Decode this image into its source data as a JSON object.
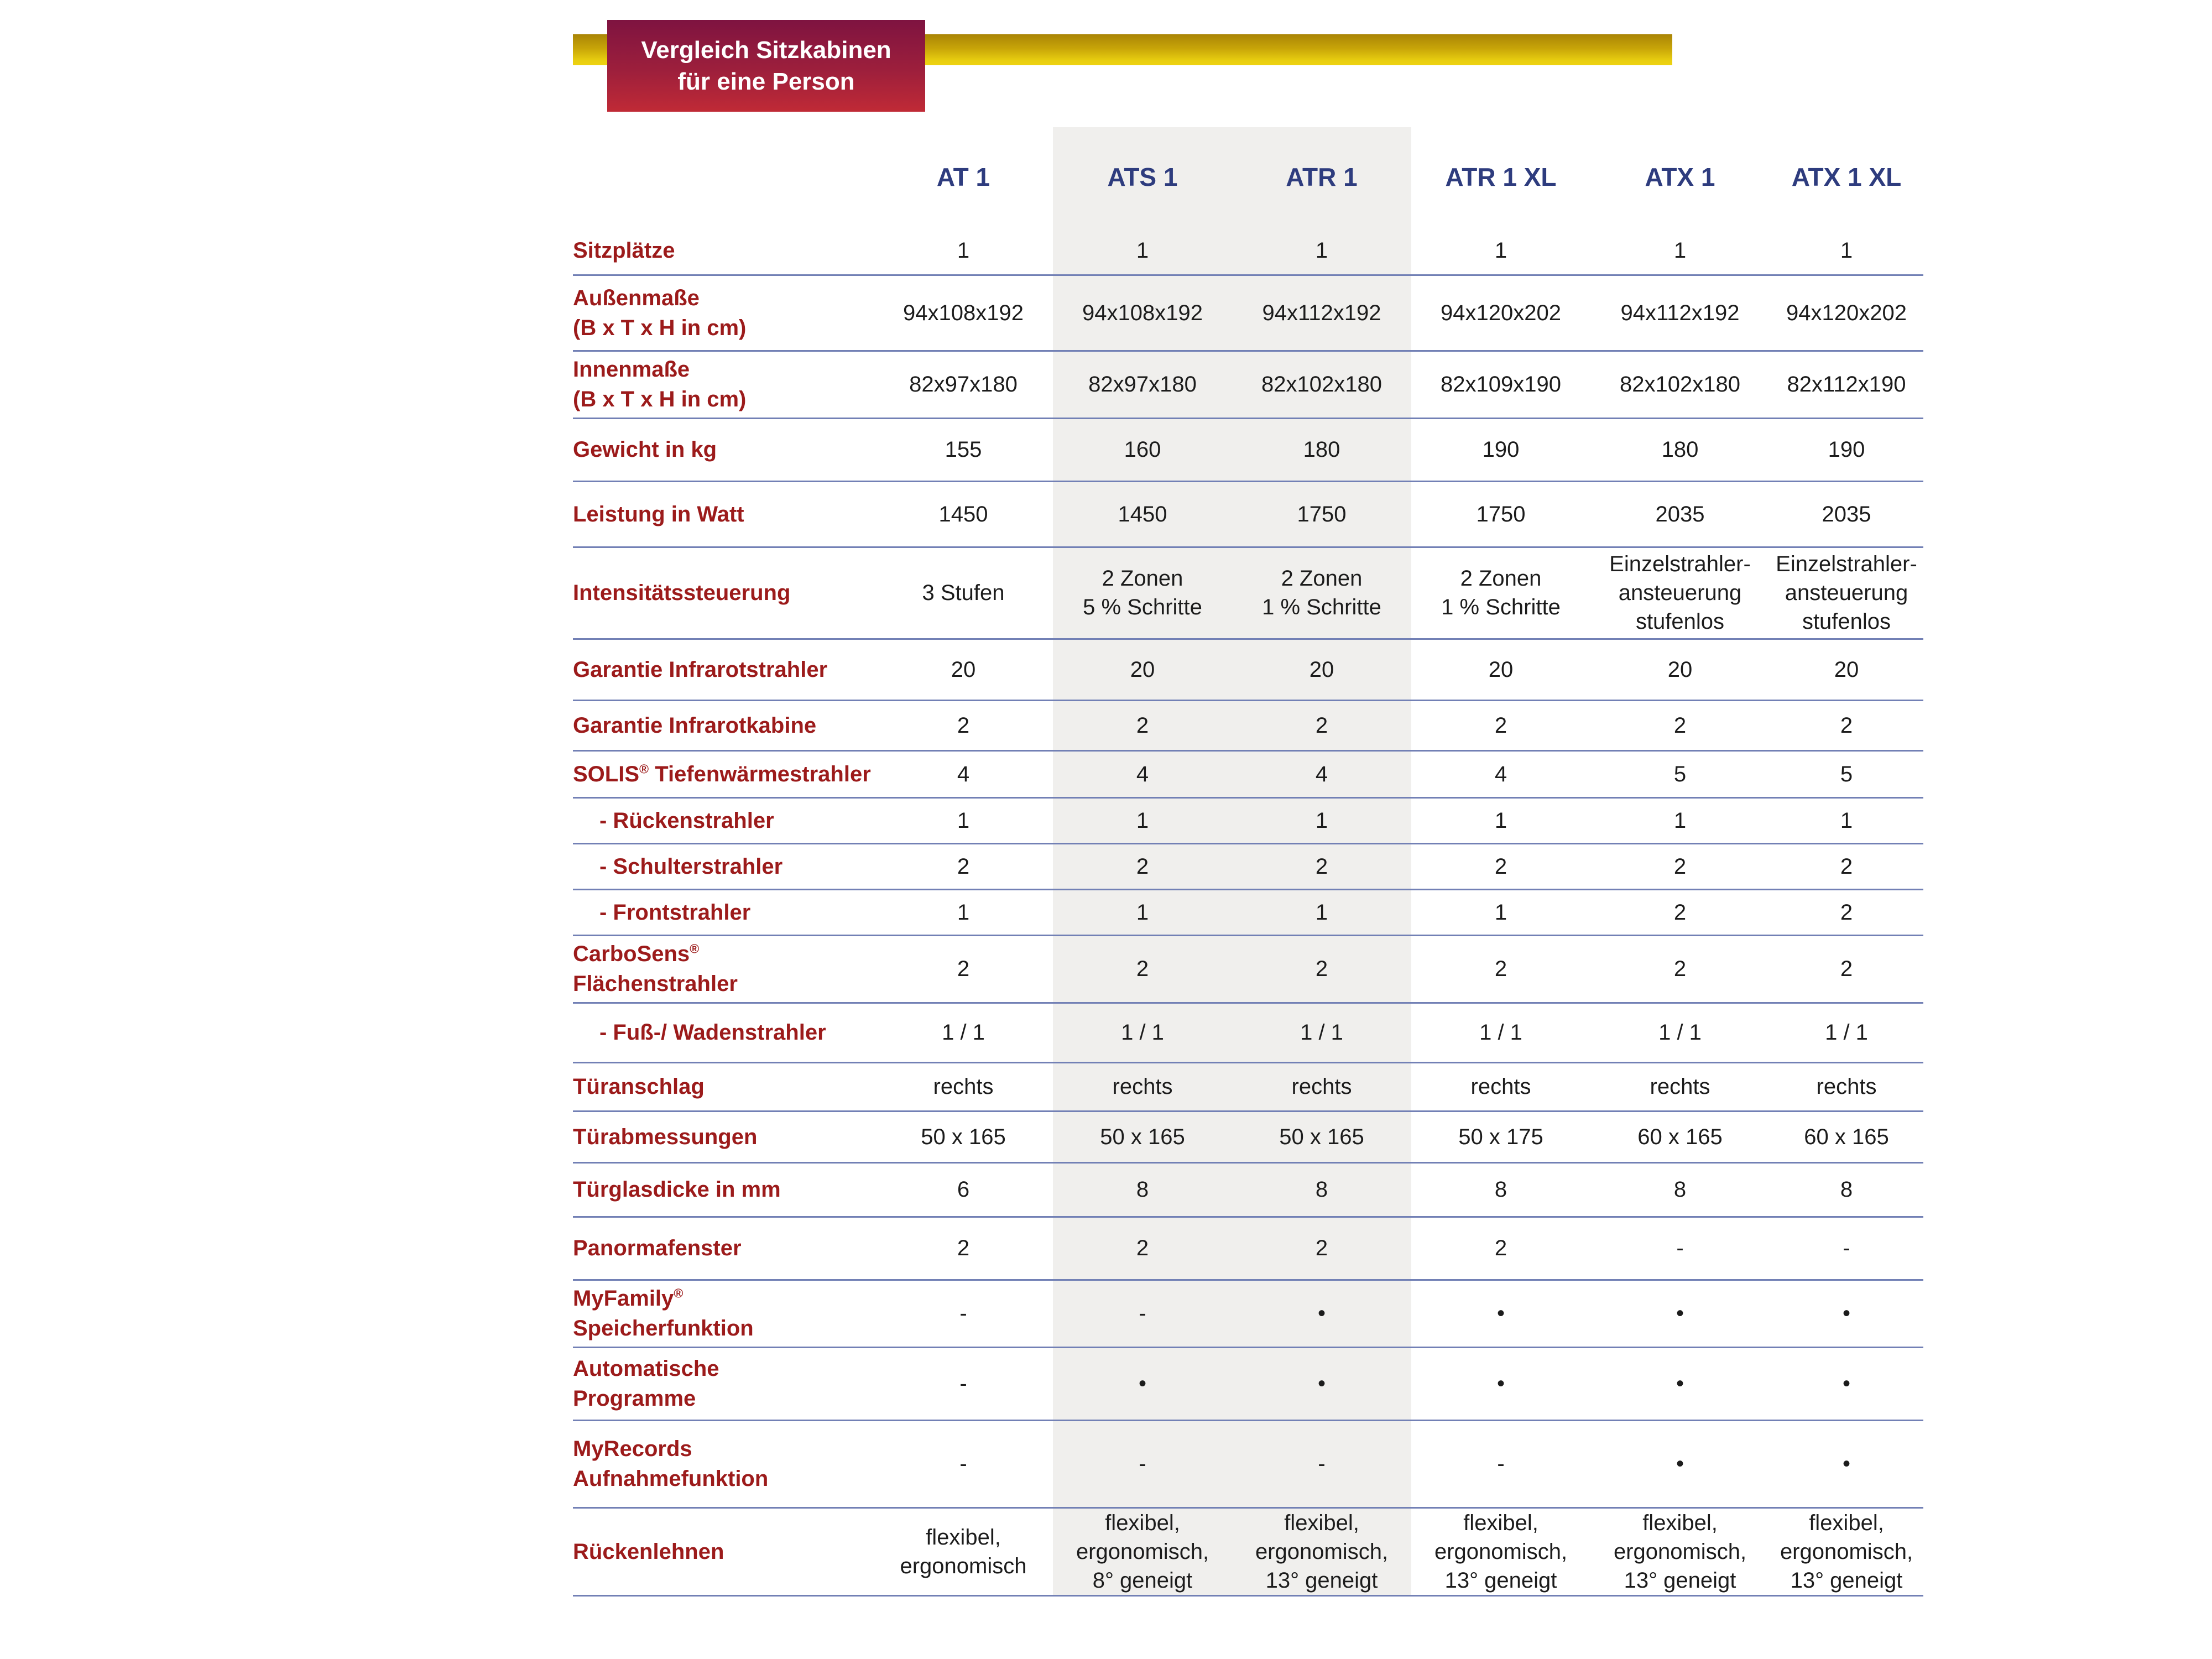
{
  "title": {
    "text": "Vergleich Sitzkabinen\nfür eine Person"
  },
  "colors": {
    "title_gradient_top": "#7e1340",
    "title_gradient_bottom": "#c02a36",
    "gold_bar_top": "#a98406",
    "gold_bar_bottom": "#eed312",
    "header_text": "#2e3c7e",
    "label_text": "#9c1b1b",
    "value_text": "#1c1c1c",
    "row_line": "#7280b5",
    "highlight_band": "#f0efed"
  },
  "table": {
    "columns": [
      "AT 1",
      "ATS 1",
      "ATR 1",
      "ATR 1 XL",
      "ATX 1",
      "ATX 1 XL"
    ],
    "highlighted_columns": [
      "ATS 1",
      "ATR 1"
    ],
    "rows": [
      {
        "label": "Sitzplätze",
        "values": [
          "1",
          "1",
          "1",
          "1",
          "1",
          "1"
        ]
      },
      {
        "label": "Außenmaße\n(B x T x H in cm)",
        "values": [
          "94x108x192",
          "94x108x192",
          "94x112x192",
          "94x120x202",
          "94x112x192",
          "94x120x202"
        ]
      },
      {
        "label": "Innenmaße\n(B x T x H in cm)",
        "values": [
          "82x97x180",
          "82x97x180",
          "82x102x180",
          "82x109x190",
          "82x102x180",
          "82x112x190"
        ]
      },
      {
        "label": "Gewicht in kg",
        "values": [
          "155",
          "160",
          "180",
          "190",
          "180",
          "190"
        ]
      },
      {
        "label": "Leistung in Watt",
        "values": [
          "1450",
          "1450",
          "1750",
          "1750",
          "2035",
          "2035"
        ]
      },
      {
        "label": "Intensitätssteuerung",
        "values": [
          "3 Stufen",
          "2 Zonen\n5 % Schritte",
          "2 Zonen\n1 % Schritte",
          "2 Zonen\n1 % Schritte",
          "Einzelstrahler-\nansteuerung\nstufenlos",
          "Einzelstrahler-\nansteuerung\nstufenlos"
        ]
      },
      {
        "label": "Garantie Infrarotstrahler",
        "values": [
          "20",
          "20",
          "20",
          "20",
          "20",
          "20"
        ]
      },
      {
        "label": "Garantie Infrarotkabine",
        "values": [
          "2",
          "2",
          "2",
          "2",
          "2",
          "2"
        ]
      },
      {
        "label": "SOLIS® Tiefenwärmestrahler",
        "values": [
          "4",
          "4",
          "4",
          "4",
          "5",
          "5"
        ]
      },
      {
        "label": "- Rückenstrahler",
        "values": [
          "1",
          "1",
          "1",
          "1",
          "1",
          "1"
        ]
      },
      {
        "label": "- Schulterstrahler",
        "values": [
          "2",
          "2",
          "2",
          "2",
          "2",
          "2"
        ]
      },
      {
        "label": "- Frontstrahler",
        "values": [
          "1",
          "1",
          "1",
          "1",
          "2",
          "2"
        ]
      },
      {
        "label": "CarboSens®\nFlächenstrahler",
        "values": [
          "2",
          "2",
          "2",
          "2",
          "2",
          "2"
        ]
      },
      {
        "label": "- Fuß-/ Wadenstrahler",
        "values": [
          "1 / 1",
          "1 / 1",
          "1 / 1",
          "1 / 1",
          "1 / 1",
          "1 / 1"
        ]
      },
      {
        "label": "Türanschlag",
        "values": [
          "rechts",
          "rechts",
          "rechts",
          "rechts",
          "rechts",
          "rechts"
        ]
      },
      {
        "label": "Türabmessungen",
        "values": [
          "50 x 165",
          "50 x 165",
          "50 x 165",
          "50 x 175",
          "60 x 165",
          "60 x 165"
        ]
      },
      {
        "label": "Türglasdicke in mm",
        "values": [
          "6",
          "8",
          "8",
          "8",
          "8",
          "8"
        ]
      },
      {
        "label": "Panormafenster",
        "values": [
          "2",
          "2",
          "2",
          "2",
          "-",
          "-"
        ]
      },
      {
        "label": "MyFamily®\nSpeicherfunktion",
        "values": [
          "-",
          "-",
          "•",
          "•",
          "•",
          "•"
        ]
      },
      {
        "label": "Automatische\nProgramme",
        "values": [
          "-",
          "•",
          "•",
          "•",
          "•",
          "•"
        ]
      },
      {
        "label": "MyRecords\nAufnahmefunktion",
        "values": [
          "-",
          "-",
          "-",
          "-",
          "•",
          "•"
        ]
      },
      {
        "label": "Rückenlehnen",
        "values": [
          "flexibel,\nergonomisch",
          "flexibel,\nergonomisch,\n8° geneigt",
          "flexibel,\nergonomisch,\n13° geneigt",
          "flexibel,\nergonomisch,\n13° geneigt",
          "flexibel,\nergonomisch,\n13° geneigt",
          "flexibel,\nergonomisch,\n13° geneigt"
        ]
      }
    ]
  }
}
